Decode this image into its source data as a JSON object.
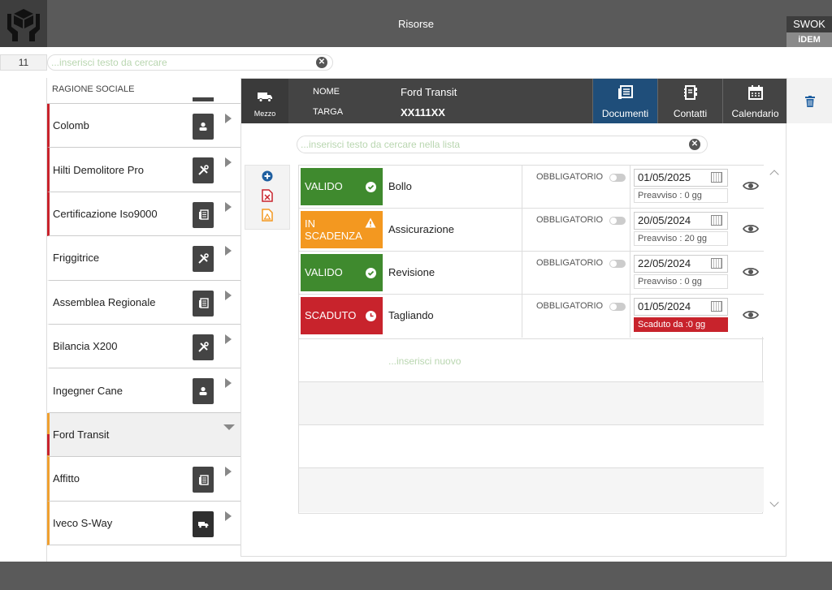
{
  "header": {
    "title": "Risorse",
    "brand_top": "SWOK",
    "brand_bottom": "iDEM"
  },
  "search": {
    "count": "11",
    "placeholder": "...inserisci testo da cercare"
  },
  "list": {
    "column_header": "RAGIONE SOCIALE",
    "items": [
      {
        "label": "Colomb",
        "icon": "person-icon",
        "color": "red"
      },
      {
        "label": "Hilti Demolitore Pro",
        "icon": "tools-icon",
        "color": "red"
      },
      {
        "label": "Certificazione Iso9000",
        "icon": "document-icon",
        "color": "red"
      },
      {
        "label": "Friggitrice",
        "icon": "tools-icon",
        "color": "none"
      },
      {
        "label": "Assemblea Regionale",
        "icon": "document-icon",
        "color": "none"
      },
      {
        "label": "Bilancia X200",
        "icon": "tools-icon",
        "color": "none"
      },
      {
        "label": "Ingegner Cane",
        "icon": "person-icon",
        "color": "none"
      },
      {
        "label": "Ford Transit",
        "icon": "none",
        "color": "orange",
        "selected": true
      },
      {
        "label": "Affitto",
        "icon": "document-icon",
        "color": "orange"
      },
      {
        "label": "Iveco S-Way",
        "icon": "van-icon",
        "color": "orange"
      }
    ]
  },
  "detail": {
    "mezzo_label": "Mezzo",
    "nome_label": "NOME",
    "nome_value": "Ford Transit",
    "targa_label": "TARGA",
    "targa_value": "XX111XX",
    "tabs": [
      {
        "label": "Documenti",
        "icon": "documents-icon",
        "active": true
      },
      {
        "label": "Contatti",
        "icon": "contacts-icon",
        "active": false
      },
      {
        "label": "Calendario",
        "icon": "calendar-icon",
        "active": false
      }
    ],
    "list_search_placeholder": "...inserisci testo da cercare nella lista",
    "new_placeholder": "...inserisci nuovo",
    "documents": [
      {
        "status": "VALIDO",
        "status_type": "valid",
        "name": "Bollo",
        "obligatory": "OBBLIGATORIO",
        "date": "01/05/2025",
        "note": "Preavviso :  0 gg"
      },
      {
        "status": "IN SCADENZA",
        "status_type": "expiring",
        "name": "Assicurazione",
        "obligatory": "OBBLIGATORIO",
        "date": "20/05/2024",
        "note": "Preavviso : 20 gg"
      },
      {
        "status": "VALIDO",
        "status_type": "valid",
        "name": "Revisione",
        "obligatory": "OBBLIGATORIO",
        "date": "22/05/2024",
        "note": "Preavviso :  0 gg"
      },
      {
        "status": "SCADUTO",
        "status_type": "expired",
        "name": "Tagliando",
        "obligatory": "OBBLIGATORIO",
        "date": "01/05/2024",
        "note": "Scaduto da :0 gg"
      }
    ]
  },
  "colors": {
    "valid": "#3f8a2e",
    "expiring": "#f39820",
    "expired": "#c8232c",
    "accent": "#1f4e7a"
  }
}
